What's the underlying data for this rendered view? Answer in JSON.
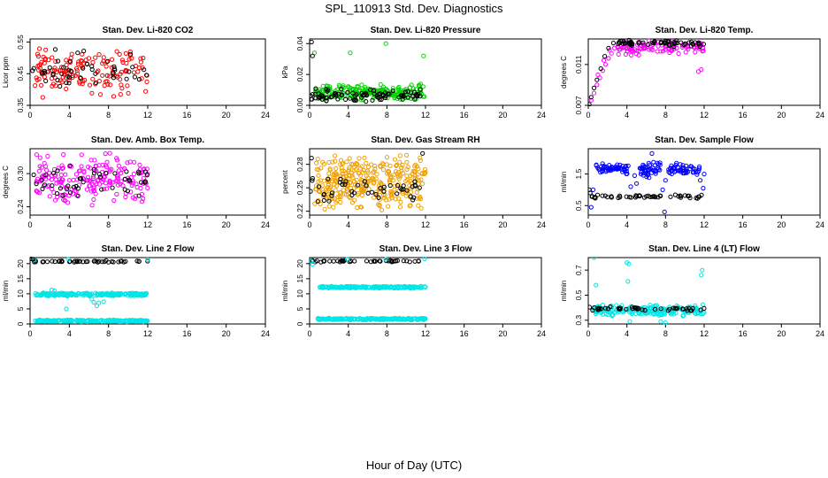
{
  "title": "SPL_110913  Std. Dev. Diagnostics",
  "xlabel": "Hour of Day (UTC)",
  "chart_data": [
    {
      "type": "scatter",
      "title": "Stan. Dev. Li-820 CO2",
      "ylabel": "Licor ppm",
      "xlim": [
        0,
        24
      ],
      "xticks": [
        0,
        4,
        8,
        12,
        16,
        20,
        24
      ],
      "ylim": [
        0.35,
        0.56
      ],
      "yticks": [
        0.35,
        0.45,
        0.55
      ],
      "series": [
        {
          "name": "primary",
          "color": "#ff0000",
          "band": [
            0.5,
            12,
            0.37,
            0.54
          ],
          "n": 150,
          "seed": 11
        },
        {
          "name": "black",
          "color": "#000000",
          "band": [
            0.2,
            12,
            0.38,
            0.53
          ],
          "n": 45,
          "seed": 12
        }
      ]
    },
    {
      "type": "scatter",
      "title": "Stan. Dev. Li-820 Pressure",
      "ylabel": "kPa",
      "xlim": [
        0,
        24
      ],
      "xticks": [
        0,
        4,
        8,
        12,
        16,
        20,
        24
      ],
      "ylim": [
        0.0,
        0.043
      ],
      "yticks": [
        0.0,
        0.02,
        0.04
      ],
      "series": [
        {
          "name": "primary",
          "color": "#00d400",
          "band": [
            0.6,
            12,
            0.003,
            0.014
          ],
          "n": 220,
          "seed": 21
        },
        {
          "name": "black",
          "color": "#000000",
          "band": [
            0.1,
            12,
            0.002,
            0.011
          ],
          "n": 90,
          "seed": 22
        },
        {
          "name": "outliers",
          "color": "#00d400",
          "points": [
            [
              0.5,
              0.034
            ],
            [
              4.2,
              0.034
            ],
            [
              7.9,
              0.04
            ],
            [
              11.8,
              0.032
            ]
          ]
        },
        {
          "name": "outliers-black",
          "color": "#000000",
          "points": [
            [
              0.2,
              0.041
            ],
            [
              0.3,
              0.032
            ]
          ]
        }
      ]
    },
    {
      "type": "scatter",
      "title": "Stan. Dev. Li-820 Temp.",
      "ylabel": "degrees C",
      "xlim": [
        0,
        24
      ],
      "xticks": [
        0,
        4,
        8,
        12,
        16,
        20,
        24
      ],
      "ylim": [
        0.007,
        0.0135
      ],
      "yticks": [
        0.007,
        0.011
      ],
      "series": [
        {
          "name": "primary",
          "color": "#ff00ff",
          "band": [
            3,
            12,
            0.0118,
            0.0135
          ],
          "n": 110,
          "seed": 31
        },
        {
          "name": "black",
          "color": "#000000",
          "band": [
            3,
            12,
            0.0127,
            0.0135
          ],
          "n": 60,
          "seed": 32
        },
        {
          "name": "ramp",
          "color": "#ff00ff",
          "points": [
            [
              0.3,
              0.0075
            ],
            [
              0.6,
              0.0082
            ],
            [
              0.9,
              0.009
            ],
            [
              1.2,
              0.0097
            ],
            [
              1.5,
              0.0104
            ],
            [
              1.8,
              0.011
            ],
            [
              2.1,
              0.0116
            ],
            [
              2.4,
              0.0121
            ],
            [
              2.7,
              0.0126
            ],
            [
              1.0,
              0.01
            ],
            [
              1.6,
              0.0114
            ],
            [
              2.2,
              0.0124
            ],
            [
              11.7,
              0.0105
            ],
            [
              11.4,
              0.0103
            ]
          ]
        },
        {
          "name": "ramp-black",
          "color": "#000000",
          "points": [
            [
              0.1,
              0.0071
            ],
            [
              0.3,
              0.0078
            ],
            [
              0.6,
              0.0087
            ],
            [
              0.9,
              0.0095
            ],
            [
              1.3,
              0.0106
            ],
            [
              1.7,
              0.0118
            ],
            [
              2.1,
              0.0126
            ],
            [
              2.6,
              0.0131
            ]
          ]
        }
      ]
    },
    {
      "type": "scatter",
      "title": "Stan. Dev. Amb. Box Temp.",
      "ylabel": "degrees C",
      "xlim": [
        0,
        24
      ],
      "xticks": [
        0,
        4,
        8,
        12,
        16,
        20,
        24
      ],
      "ylim": [
        0.225,
        0.345
      ],
      "yticks": [
        0.24,
        0.3
      ],
      "series": [
        {
          "name": "primary",
          "color": "#ff00ff",
          "band": [
            0.5,
            12,
            0.24,
            0.34
          ],
          "n": 200,
          "seed": 41
        },
        {
          "name": "black",
          "color": "#000000",
          "band": [
            0.1,
            12,
            0.25,
            0.32
          ],
          "n": 45,
          "seed": 42
        }
      ]
    },
    {
      "type": "scatter",
      "title": "Stan. Dev. Gas Stream RH",
      "ylabel": "percent",
      "xlim": [
        0,
        24
      ],
      "xticks": [
        0,
        4,
        8,
        12,
        16,
        20,
        24
      ],
      "ylim": [
        0.215,
        0.3
      ],
      "yticks": [
        0.22,
        0.25,
        0.28
      ],
      "series": [
        {
          "name": "primary",
          "color": "#f0a000",
          "band": [
            0.5,
            12,
            0.218,
            0.295
          ],
          "n": 320,
          "seed": 51
        },
        {
          "name": "black",
          "color": "#000000",
          "band": [
            0.1,
            12,
            0.225,
            0.27
          ],
          "n": 45,
          "seed": 52
        },
        {
          "name": "outliers-black",
          "color": "#000000",
          "points": [
            [
              0.2,
              0.288
            ],
            [
              11.7,
              0.294
            ],
            [
              0.3,
              0.262
            ]
          ]
        }
      ]
    },
    {
      "type": "scatter",
      "title": "Stan. Dev. Sample Flow",
      "ylabel": "ml/min",
      "xlim": [
        0,
        24
      ],
      "xticks": [
        0,
        4,
        8,
        12,
        16,
        20,
        24
      ],
      "ylim": [
        0.2,
        2.3
      ],
      "yticks": [
        0.5,
        1.5
      ],
      "series": [
        {
          "name": "primary-a",
          "color": "#0000ff",
          "band": [
            0.8,
            4.2,
            1.45,
            1.85
          ],
          "n": 55,
          "seed": 61
        },
        {
          "name": "primary-b",
          "color": "#0000ff",
          "band": [
            5.3,
            7.5,
            1.35,
            1.95
          ],
          "n": 45,
          "seed": 62
        },
        {
          "name": "primary-c",
          "color": "#0000ff",
          "band": [
            8.3,
            11.5,
            1.45,
            1.85
          ],
          "n": 50,
          "seed": 63
        },
        {
          "name": "black",
          "color": "#000000",
          "band": [
            0.2,
            12,
            0.72,
            0.85
          ],
          "n": 50,
          "seed": 64
        },
        {
          "name": "outliers",
          "color": "#0000ff",
          "points": [
            [
              0.3,
              0.45
            ],
            [
              7.9,
              0.3
            ],
            [
              6.6,
              2.15
            ],
            [
              4.4,
              1.1
            ],
            [
              5.0,
              1.2
            ],
            [
              7.7,
              1.0
            ],
            [
              11.9,
              1.05
            ],
            [
              11.6,
              1.3
            ],
            [
              12.0,
              1.5
            ],
            [
              0.5,
              1.0
            ],
            [
              4.8,
              1.45
            ],
            [
              8.0,
              1.3
            ]
          ]
        },
        {
          "name": "outliers-black",
          "color": "#000000",
          "points": [
            [
              0.1,
              1.0
            ],
            [
              0.2,
              0.9
            ]
          ]
        }
      ]
    },
    {
      "type": "scatter",
      "title": "Stan. Dev. Line 2 Flow",
      "ylabel": "ml/min",
      "xlim": [
        0,
        24
      ],
      "xticks": [
        0,
        4,
        8,
        12,
        16,
        20,
        24
      ],
      "ylim": [
        0,
        22
      ],
      "yticks": [
        0,
        5,
        10,
        15,
        20
      ],
      "series": [
        {
          "name": "primary-mid",
          "color": "#00e5e5",
          "band": [
            0.5,
            12,
            9.2,
            10.4
          ],
          "n": 200,
          "seed": 71
        },
        {
          "name": "primary-low",
          "color": "#00e5e5",
          "band": [
            0.5,
            12,
            0.7,
            1.4
          ],
          "n": 220,
          "seed": 72
        },
        {
          "name": "black",
          "color": "#000000",
          "band": [
            0.1,
            12,
            20.4,
            21.0
          ],
          "n": 45,
          "seed": 73
        },
        {
          "name": "outliers",
          "color": "#00e5e5",
          "points": [
            [
              2.2,
              11.3
            ],
            [
              2.5,
              11.0
            ],
            [
              3.7,
              5.0
            ],
            [
              6.3,
              8.2
            ],
            [
              6.8,
              6.0
            ],
            [
              6.5,
              7.2
            ],
            [
              7.5,
              7.4
            ],
            [
              7.0,
              7.0
            ],
            [
              0.4,
              21.2
            ],
            [
              3.9,
              21.5
            ],
            [
              12.0,
              21.3
            ]
          ]
        },
        {
          "name": "outliers-black",
          "color": "#000000",
          "points": [
            [
              0.1,
              21.6
            ],
            [
              0.3,
              21.4
            ]
          ]
        }
      ]
    },
    {
      "type": "scatter",
      "title": "Stan. Dev. Line 3 Flow",
      "ylabel": "ml/min",
      "xlim": [
        0,
        24
      ],
      "xticks": [
        0,
        4,
        8,
        12,
        16,
        20,
        24
      ],
      "ylim": [
        0,
        22
      ],
      "yticks": [
        0,
        5,
        10,
        15,
        20
      ],
      "series": [
        {
          "name": "primary-mid",
          "color": "#00e5e5",
          "band": [
            1,
            12,
            11.8,
            12.6
          ],
          "n": 180,
          "seed": 81
        },
        {
          "name": "primary-low",
          "color": "#00e5e5",
          "band": [
            0.8,
            12,
            1.3,
            2.0
          ],
          "n": 200,
          "seed": 82
        },
        {
          "name": "black",
          "color": "#000000",
          "band": [
            0.1,
            12,
            20.5,
            21.1
          ],
          "n": 45,
          "seed": 83
        },
        {
          "name": "outliers",
          "color": "#00e5e5",
          "points": [
            [
              0.2,
              20.8
            ],
            [
              3.9,
              21.5
            ],
            [
              7.9,
              21.4
            ],
            [
              11.9,
              21.6
            ],
            [
              0.3,
              19.8
            ]
          ]
        }
      ]
    },
    {
      "type": "scatter",
      "title": "Stan. Dev. Line 4 (LT) Flow",
      "ylabel": "ml/min",
      "xlim": [
        0,
        24
      ],
      "xticks": [
        0,
        4,
        8,
        12,
        16,
        20,
        24
      ],
      "ylim": [
        0.27,
        0.8
      ],
      "yticks": [
        0.3,
        0.5,
        0.7
      ],
      "series": [
        {
          "name": "primary",
          "color": "#00e5e5",
          "band": [
            0.5,
            12,
            0.33,
            0.43
          ],
          "n": 200,
          "seed": 91
        },
        {
          "name": "black",
          "color": "#000000",
          "band": [
            0.1,
            12,
            0.37,
            0.41
          ],
          "n": 45,
          "seed": 92
        },
        {
          "name": "outliers",
          "color": "#00e5e5",
          "points": [
            [
              0.6,
              0.8
            ],
            [
              0.8,
              0.58
            ],
            [
              4.0,
              0.76
            ],
            [
              4.2,
              0.75
            ],
            [
              4.1,
              0.61
            ],
            [
              11.8,
              0.7
            ],
            [
              11.7,
              0.66
            ],
            [
              4.3,
              0.29
            ],
            [
              7.5,
              0.29
            ],
            [
              8.0,
              0.28
            ]
          ]
        }
      ]
    }
  ]
}
